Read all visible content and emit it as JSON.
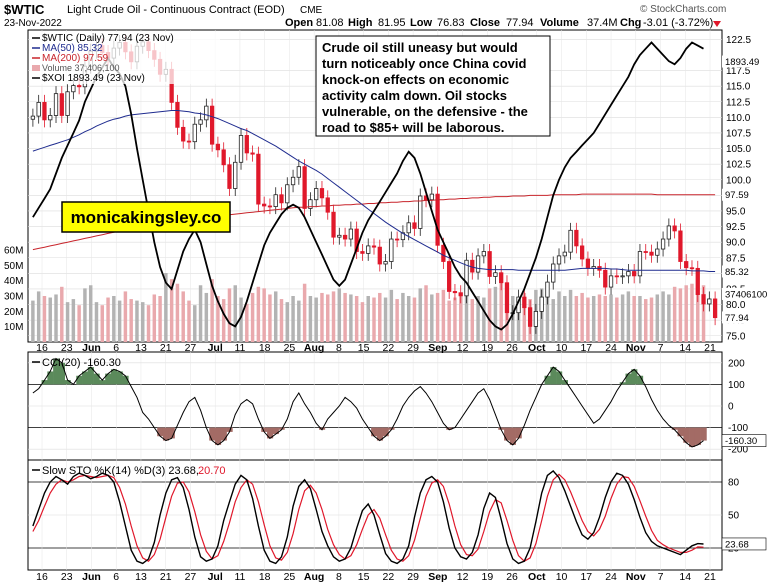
{
  "header": {
    "symbol": "$WTIC",
    "description": "Light Crude Oil - Continuous Contract (EOD)",
    "exchange": "CME",
    "date": "23-Nov-2022",
    "open_label": "Open",
    "open": "81.08",
    "high_label": "High",
    "high": "81.95",
    "low_label": "Low",
    "low": "76.83",
    "close_label": "Close",
    "close": "77.94",
    "volume_label": "Volume",
    "volume": "37.4M",
    "chg_label": "Chg",
    "chg": "-3.01 (-3.72%)",
    "watermark": "© StockCharts.com"
  },
  "legend": {
    "wtic": "$WTIC (Daily) 77.94 (23 Nov)",
    "ma50": "MA(50) 85.32",
    "ma200": "MA(200) 97.59",
    "volume": "Volume 37,406,100",
    "xoi": "$XOI 1893.49 (23 Nov)"
  },
  "annotation": {
    "commentary": [
      "Crude oil still uneasy but would",
      "turn noticeably once China covid",
      "knock-on effects on economic",
      "activity calm down. Oil stocks",
      "vulnerable, on the defensive - the",
      "road to $85+ will be laborous."
    ],
    "brand": "monicakingsley.co"
  },
  "price_axis": [
    "122.5",
    "117.5",
    "115.0",
    "112.5",
    "110.0",
    "107.5",
    "105.0",
    "102.5",
    "100.0",
    "97.5",
    "95.0",
    "92.5",
    "90.0",
    "87.5",
    "85.0",
    "82.5",
    "80.0",
    "77.5",
    "75.0"
  ],
  "volume_axis": [
    "60M",
    "50M",
    "40M",
    "30M",
    "20M",
    "10M"
  ],
  "price_tags": {
    "xoi": "1893.49",
    "ma200": "97.59",
    "ma50": "85.32",
    "volume": "37406100",
    "close": "77.94"
  },
  "x_labels": [
    "16",
    "23",
    "Jun",
    "6",
    "13",
    "21",
    "27",
    "Jul",
    "11",
    "18",
    "25",
    "Aug",
    "8",
    "15",
    "22",
    "29",
    "Sep",
    "12",
    "19",
    "26",
    "Oct",
    "10",
    "17",
    "24",
    "Nov",
    "7",
    "14",
    "21"
  ],
  "cci": {
    "title": "CCI(20) -160.30",
    "axis": [
      "200",
      "100",
      "0",
      "-100",
      "-200"
    ],
    "tag": "-160.30"
  },
  "sto": {
    "title_main": "Slow STO %K(14) %D(3) 23.68,",
    "title_d": "20.70",
    "axis": [
      "80",
      "50",
      "20"
    ],
    "tag": "23.68"
  },
  "colors": {
    "up": "#222222",
    "down": "#e0182b",
    "ma50": "#1f2c8f",
    "ma200": "#c8242b",
    "xoi": "#000000",
    "vol_up": "#b3b3b3",
    "vol_down": "#e9a9ad",
    "fill_pos": "#5b8a5b",
    "fill_neg": "#a36b65",
    "dline": "#e0182b"
  },
  "chart_data": [
    {
      "type": "candlestick",
      "title": "$WTIC (Daily)",
      "x_start": "2022-05-16",
      "x_end": "2022-11-23",
      "ylim": [
        74,
        124
      ],
      "close": [
        110.2,
        112.4,
        109.6,
        110.3,
        113.8,
        110.3,
        114.1,
        115.1,
        114.9,
        118.2,
        120.6,
        121.5,
        120.4,
        119.5,
        121.1,
        122.0,
        120.5,
        118.9,
        121.4,
        122.1,
        120.7,
        119.3,
        116.9,
        117.7,
        112.4,
        108.4,
        106.2,
        106.1,
        108.9,
        109.6,
        111.8,
        105.7,
        104.8,
        102.4,
        98.6,
        102.8,
        107.1,
        104.3,
        104.1,
        96.1,
        95.8,
        95.7,
        97.6,
        96.3,
        99.2,
        100.4,
        102.1,
        95.4,
        96.8,
        98.6,
        97.1,
        94.8,
        90.8,
        91.1,
        90.5,
        92.1,
        88.5,
        88.2,
        89.4,
        89.2,
        86.5,
        86.9,
        90.5,
        90.4,
        91.5,
        93.1,
        92.2,
        97.4,
        96.8,
        97.7,
        89.5,
        86.9,
        82.1,
        81.9,
        81.4,
        87.1,
        85.2,
        87.8,
        88.5,
        84.5,
        85.1,
        83.5,
        78.7,
        78.7,
        81.2,
        79.5,
        76.5,
        78.9,
        81.2,
        83.6,
        86.5,
        87.8,
        88.4,
        91.9,
        89.4,
        87.3,
        85.8,
        86.1,
        85.5,
        82.8,
        84.6,
        84.5,
        84.6,
        85.3,
        84.6,
        88.5,
        88.4,
        87.9,
        88.9,
        90.5,
        92.6,
        91.8,
        86.9,
        85.9,
        85.8,
        81.6,
        80.1,
        80.9,
        77.9
      ],
      "ma50": [
        104.6,
        104.9,
        105.2,
        105.5,
        105.8,
        106.1,
        106.4,
        106.8,
        107.2,
        107.7,
        108.1,
        108.6,
        109.0,
        109.4,
        109.7,
        109.9,
        110.2,
        110.4,
        110.5,
        110.6,
        110.7,
        110.8,
        110.9,
        111.0,
        111.1,
        111.1,
        111.0,
        110.9,
        110.7,
        110.6,
        110.4,
        110.1,
        109.8,
        109.4,
        109.0,
        108.6,
        108.2,
        107.9,
        107.4,
        106.9,
        106.4,
        105.9,
        105.4,
        104.8,
        104.2,
        103.6,
        103.0,
        102.5,
        102.0,
        101.5,
        100.9,
        100.2,
        99.5,
        98.8,
        98.1,
        97.4,
        96.7,
        96.0,
        95.3,
        94.6,
        93.9,
        93.2,
        92.6,
        92.0,
        91.4,
        90.9,
        90.4,
        89.9,
        89.4,
        88.9,
        88.4,
        87.9,
        87.5,
        87.1,
        86.7,
        86.3,
        86.0,
        85.8,
        85.7,
        85.6,
        85.6,
        85.6,
        85.6,
        85.6,
        85.5,
        85.5,
        85.5,
        85.5,
        85.5,
        85.5,
        85.5,
        85.5,
        85.5,
        85.6,
        85.7,
        85.8,
        85.8,
        85.8,
        85.8,
        85.8,
        85.7,
        85.7,
        85.6,
        85.5,
        85.5,
        85.5,
        85.5,
        85.5,
        85.5,
        85.5,
        85.5,
        85.5,
        85.5,
        85.5,
        85.4,
        85.4,
        85.4,
        85.3,
        85.3
      ],
      "ma200": [
        88.8,
        89.0,
        89.2,
        89.4,
        89.6,
        89.8,
        90.0,
        90.2,
        90.4,
        90.6,
        90.8,
        91.0,
        91.2,
        91.4,
        91.6,
        91.8,
        92.0,
        92.2,
        92.4,
        92.6,
        92.8,
        93.0,
        93.2,
        93.3,
        93.4,
        93.5,
        93.6,
        93.7,
        93.8,
        93.9,
        94.0,
        94.1,
        94.2,
        94.3,
        94.4,
        94.5,
        94.6,
        94.7,
        94.8,
        94.9,
        95.0,
        95.1,
        95.2,
        95.3,
        95.4,
        95.5,
        95.6,
        95.6,
        95.7,
        95.7,
        95.8,
        95.8,
        95.9,
        95.9,
        96.0,
        96.0,
        96.1,
        96.1,
        96.2,
        96.2,
        96.3,
        96.3,
        96.4,
        96.4,
        96.5,
        96.5,
        96.6,
        96.6,
        96.7,
        96.7,
        96.8,
        96.8,
        96.9,
        96.9,
        97.0,
        97.0,
        97.1,
        97.1,
        97.2,
        97.2,
        97.3,
        97.3,
        97.3,
        97.4,
        97.4,
        97.4,
        97.5,
        97.5,
        97.5,
        97.5,
        97.6,
        97.6,
        97.6,
        97.6,
        97.6,
        97.7,
        97.7,
        97.7,
        97.7,
        97.7,
        97.7,
        97.7,
        97.7,
        97.7,
        97.7,
        97.7,
        97.7,
        97.7,
        97.6,
        97.6,
        97.6,
        97.6,
        97.6,
        97.6,
        97.6,
        97.6,
        97.6,
        97.6,
        97.6
      ],
      "volume_millions": [
        27,
        33,
        30,
        29,
        31,
        36,
        26,
        28,
        24,
        35,
        37,
        26,
        24,
        29,
        30,
        27,
        33,
        28,
        27,
        26,
        24,
        31,
        30,
        45,
        41,
        38,
        33,
        27,
        24,
        37,
        32,
        41,
        30,
        28,
        35,
        37,
        29,
        25,
        32,
        36,
        35,
        31,
        33,
        28,
        26,
        30,
        27,
        38,
        30,
        29,
        32,
        31,
        33,
        35,
        32,
        31,
        30,
        26,
        30,
        29,
        32,
        29,
        34,
        28,
        32,
        30,
        29,
        35,
        37,
        31,
        32,
        34,
        27,
        29,
        31,
        32,
        28,
        30,
        29,
        35,
        36,
        40,
        37,
        30,
        27,
        32,
        28,
        34,
        35,
        31,
        28,
        33,
        30,
        34,
        30,
        32,
        29,
        30,
        31,
        30,
        31,
        29,
        31,
        33,
        30,
        30,
        28,
        29,
        31,
        33,
        31,
        36,
        35,
        37,
        38,
        33,
        37
      ],
      "volume_ylim": [
        0,
        60
      ],
      "series_xoi_scaled": [
        94.0,
        95.5,
        97.0,
        98.5,
        101.0,
        103.5,
        105.5,
        107.5,
        109.5,
        112.5,
        114.5,
        116.5,
        118.0,
        119.5,
        118.0,
        117.0,
        115.0,
        110.5,
        105.0,
        100.0,
        95.0,
        90.0,
        86.0,
        83.5,
        82.5,
        85.5,
        88.5,
        90.5,
        92.0,
        90.0,
        86.5,
        83.0,
        80.5,
        78.5,
        77.0,
        76.5,
        78.0,
        80.5,
        83.5,
        86.5,
        89.5,
        91.5,
        93.0,
        94.5,
        95.5,
        96.0,
        95.5,
        94.0,
        92.0,
        90.0,
        88.0,
        86.0,
        84.0,
        83.0,
        84.0,
        86.5,
        89.0,
        91.5,
        93.5,
        95.0,
        96.5,
        98.0,
        99.5,
        101.0,
        103.0,
        104.5,
        103.5,
        101.0,
        98.0,
        95.0,
        92.0,
        90.0,
        88.0,
        86.0,
        84.5,
        83.5,
        82.0,
        80.5,
        79.0,
        77.5,
        76.5,
        76.0,
        76.8,
        78.5,
        80.5,
        82.5,
        85.0,
        87.5,
        90.5,
        94.0,
        97.5,
        100.0,
        102.0,
        103.5,
        104.5,
        105.5,
        106.5,
        107.5,
        109.0,
        110.5,
        112.0,
        113.5,
        115.0,
        116.5,
        118.5,
        120.0,
        121.0,
        122.0,
        121.0,
        120.0,
        119.0,
        118.5,
        119.5,
        121.0,
        122.0,
        121.5,
        121.0
      ],
      "xlabel": "",
      "ylabel": ""
    },
    {
      "type": "line",
      "title": "CCI(20)",
      "ylim": [
        -250,
        250
      ],
      "values": [
        60,
        80,
        120,
        160,
        220,
        200,
        120,
        100,
        140,
        160,
        180,
        150,
        120,
        150,
        170,
        160,
        140,
        90,
        40,
        -30,
        -60,
        -100,
        -140,
        -160,
        -150,
        -90,
        -30,
        20,
        40,
        -20,
        -100,
        -160,
        -180,
        -160,
        -120,
        -40,
        10,
        30,
        10,
        -60,
        -120,
        -150,
        -130,
        -110,
        -60,
        20,
        60,
        10,
        -30,
        -80,
        -110,
        -60,
        -30,
        0,
        40,
        20,
        -10,
        -60,
        -100,
        -140,
        -160,
        -140,
        -110,
        -60,
        0,
        40,
        70,
        90,
        60,
        20,
        -30,
        -80,
        -110,
        -100,
        -60,
        -20,
        20,
        60,
        80,
        30,
        -40,
        -110,
        -160,
        -180,
        -150,
        -90,
        -20,
        40,
        100,
        140,
        180,
        160,
        120,
        80,
        40,
        0,
        -40,
        -80,
        -60,
        -20,
        20,
        70,
        110,
        150,
        170,
        140,
        90,
        30,
        -20,
        -60,
        -90,
        -110,
        -140,
        -170,
        -190,
        -180,
        -160
      ]
    },
    {
      "type": "line",
      "title": "Slow STO %K(14) %D(3)",
      "ylim": [
        0,
        100
      ],
      "series": [
        {
          "name": "%K",
          "values": [
            40,
            55,
            70,
            80,
            85,
            82,
            78,
            85,
            88,
            86,
            83,
            85,
            88,
            86,
            80,
            62,
            40,
            18,
            8,
            6,
            10,
            25,
            50,
            70,
            82,
            84,
            75,
            55,
            30,
            12,
            8,
            10,
            22,
            45,
            62,
            78,
            86,
            82,
            65,
            40,
            18,
            8,
            6,
            12,
            30,
            58,
            76,
            82,
            74,
            55,
            35,
            22,
            12,
            8,
            10,
            20,
            38,
            54,
            60,
            50,
            32,
            15,
            8,
            6,
            10,
            22,
            48,
            70,
            82,
            85,
            80,
            62,
            38,
            20,
            12,
            10,
            16,
            32,
            56,
            70,
            66,
            46,
            24,
            10,
            6,
            8,
            20,
            44,
            70,
            86,
            90,
            84,
            72,
            58,
            44,
            32,
            28,
            34,
            48,
            66,
            80,
            88,
            86,
            78,
            64,
            48,
            34,
            26,
            22,
            20,
            18,
            16,
            14,
            18,
            22,
            24,
            23.68
          ]
        },
        {
          "name": "%D",
          "values": [
            35,
            45,
            58,
            70,
            78,
            82,
            80,
            82,
            85,
            86,
            85,
            84,
            85,
            86,
            84,
            75,
            60,
            40,
            22,
            11,
            8,
            14,
            28,
            48,
            67,
            79,
            80,
            71,
            53,
            32,
            17,
            10,
            13,
            26,
            43,
            62,
            75,
            82,
            78,
            62,
            41,
            22,
            11,
            9,
            16,
            33,
            55,
            72,
            77,
            70,
            55,
            37,
            23,
            14,
            10,
            13,
            23,
            37,
            50,
            55,
            47,
            32,
            18,
            10,
            8,
            13,
            27,
            47,
            67,
            79,
            82,
            76,
            60,
            40,
            23,
            14,
            13,
            19,
            35,
            53,
            64,
            61,
            45,
            27,
            13,
            8,
            11,
            24,
            45,
            67,
            82,
            87,
            82,
            71,
            58,
            45,
            35,
            31,
            37,
            49,
            65,
            78,
            85,
            84,
            76,
            63,
            49,
            36,
            27,
            23,
            20,
            18,
            16,
            16,
            18,
            21,
            20.7
          ]
        }
      ]
    }
  ]
}
